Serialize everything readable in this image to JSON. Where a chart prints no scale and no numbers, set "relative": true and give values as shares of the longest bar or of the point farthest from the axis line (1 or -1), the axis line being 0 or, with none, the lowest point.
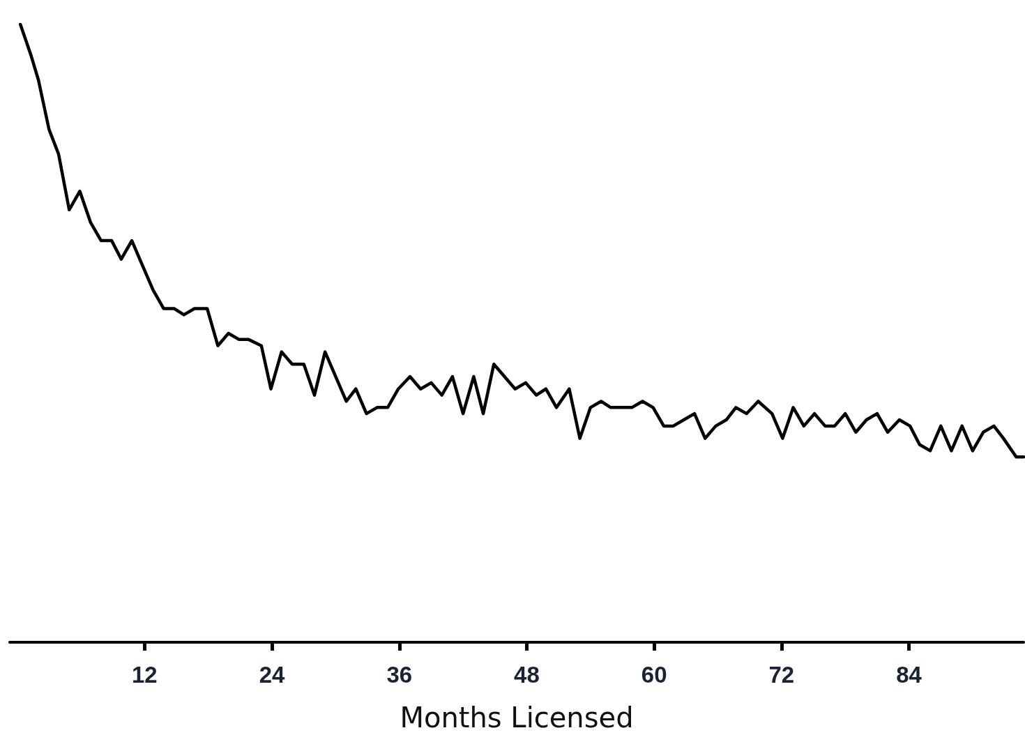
{
  "chart_data": {
    "type": "line",
    "xlabel": "Months Licensed",
    "relative": true,
    "xlim": [
      -0.7,
      94.8
    ],
    "xticks": [
      12,
      24,
      36,
      48,
      60,
      72,
      84
    ],
    "grid": false,
    "marker": "none",
    "line_style": "solid",
    "series": [
      {
        "color": "#000000",
        "x": [
          0.3,
          1.3,
          2.0,
          3.0,
          3.9,
          4.9,
          5.9,
          6.9,
          7.9,
          8.9,
          9.8,
          10.8,
          11.8,
          12.8,
          13.8,
          14.8,
          15.7,
          16.7,
          17.9,
          18.9,
          19.9,
          20.9,
          21.8,
          23.0,
          23.9,
          24.9,
          25.9,
          27.0,
          28.0,
          29.0,
          30.0,
          31.0,
          31.9,
          32.9,
          33.9,
          34.9,
          35.9,
          37.0,
          38.0,
          39.0,
          40.0,
          41.0,
          42.0,
          43.0,
          43.9,
          44.9,
          45.9,
          46.9,
          47.9,
          48.9,
          49.8,
          50.8,
          52.0,
          53.0,
          54.0,
          55.0,
          55.9,
          56.9,
          57.9,
          58.9,
          59.9,
          60.9,
          61.8,
          62.8,
          63.8,
          64.8,
          65.8,
          66.8,
          67.7,
          68.7,
          69.8,
          71.1,
          72.1,
          73.1,
          74.1,
          75.1,
          76.1,
          77.0,
          78.0,
          79.0,
          80.0,
          81.0,
          82.0,
          83.1,
          84.1,
          85.0,
          86.0,
          87.0,
          88.0,
          89.0,
          90.0,
          91.0,
          92.0,
          92.9,
          94.1,
          94.8
        ],
        "values": [
          1.0,
          0.95,
          0.91,
          0.83,
          0.79,
          0.7,
          0.73,
          0.68,
          0.65,
          0.65,
          0.62,
          0.65,
          0.61,
          0.57,
          0.54,
          0.54,
          0.53,
          0.54,
          0.54,
          0.48,
          0.5,
          0.49,
          0.49,
          0.48,
          0.41,
          0.47,
          0.45,
          0.45,
          0.4,
          0.47,
          0.43,
          0.39,
          0.41,
          0.37,
          0.38,
          0.38,
          0.41,
          0.43,
          0.41,
          0.42,
          0.4,
          0.43,
          0.37,
          0.43,
          0.37,
          0.45,
          0.43,
          0.41,
          0.42,
          0.4,
          0.41,
          0.38,
          0.41,
          0.33,
          0.38,
          0.39,
          0.38,
          0.38,
          0.38,
          0.39,
          0.38,
          0.35,
          0.35,
          0.36,
          0.37,
          0.33,
          0.35,
          0.36,
          0.38,
          0.37,
          0.39,
          0.37,
          0.33,
          0.38,
          0.35,
          0.37,
          0.35,
          0.35,
          0.37,
          0.34,
          0.36,
          0.37,
          0.34,
          0.36,
          0.35,
          0.32,
          0.31,
          0.35,
          0.31,
          0.35,
          0.31,
          0.34,
          0.35,
          0.33,
          0.3,
          0.3
        ]
      }
    ]
  }
}
